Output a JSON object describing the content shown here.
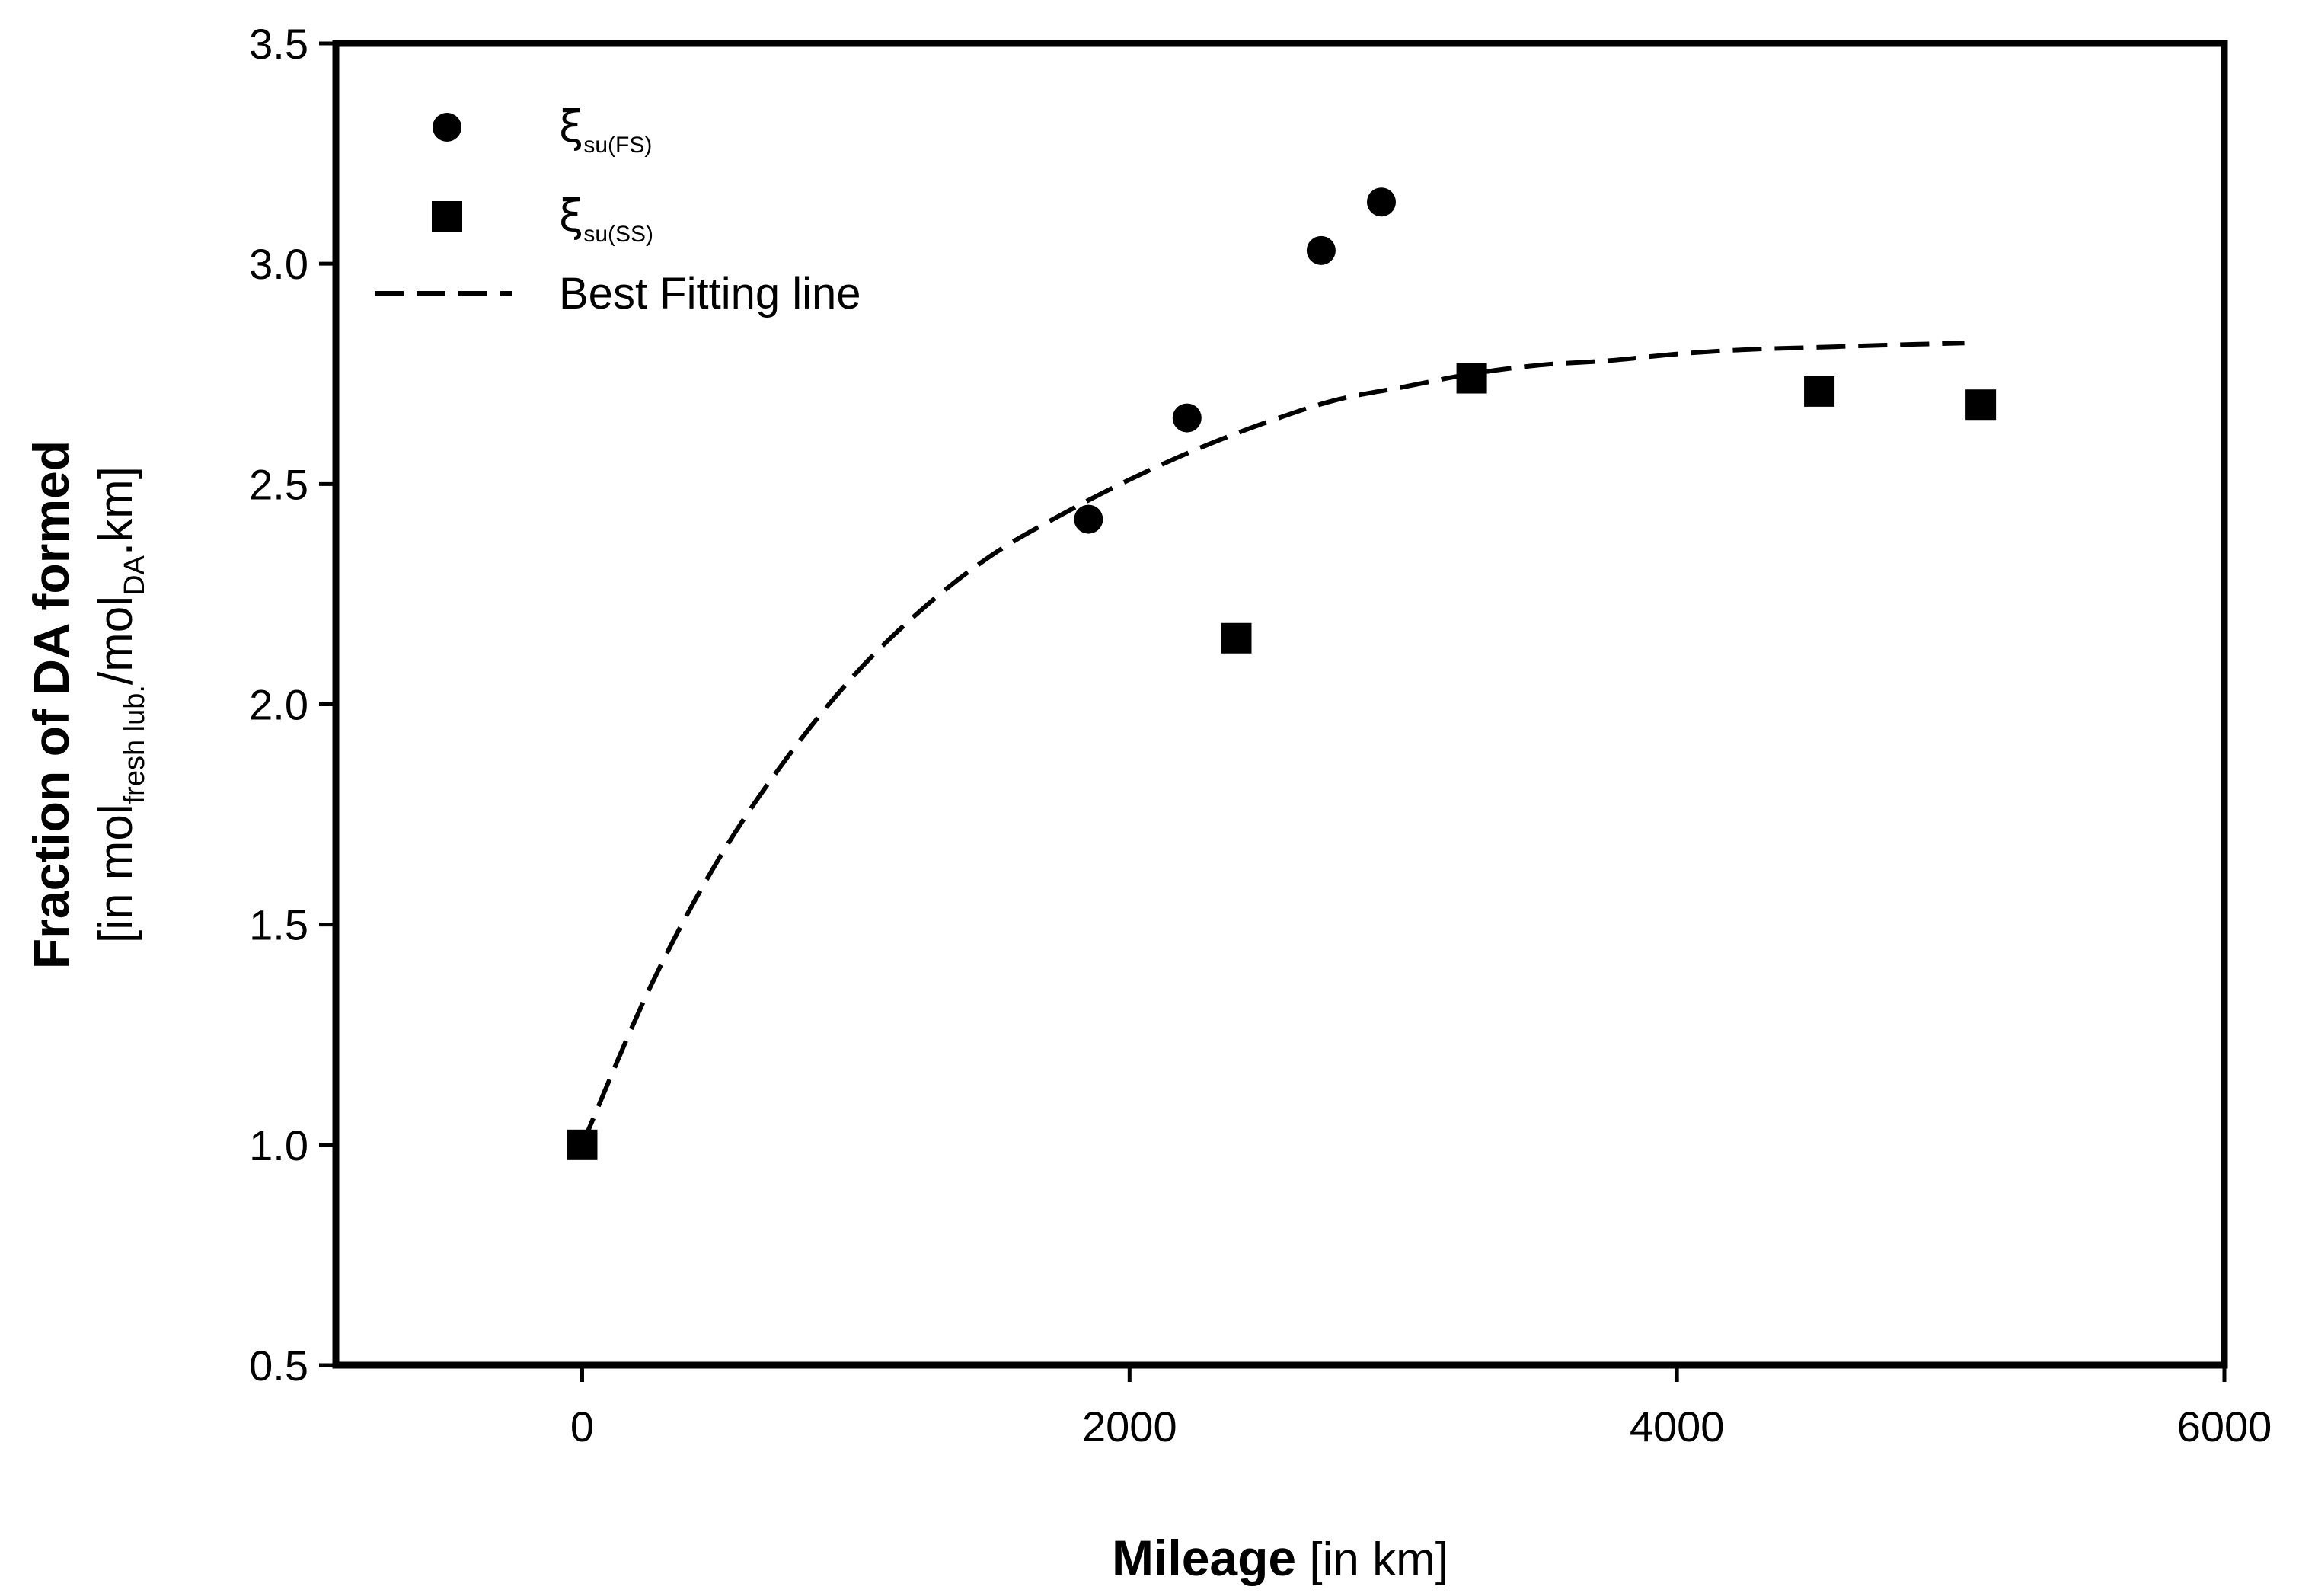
{
  "chart_data": {
    "type": "scatter",
    "title": "",
    "xlabel": {
      "bold": "Mileage",
      "regular": " [in km]"
    },
    "ylabel": {
      "bold": "Fraction of DA formed",
      "unit_prefix": "[in mol",
      "unit_sub1": "fresh lub.",
      "unit_mid": "/mol",
      "unit_sub2": "DA",
      "unit_suffix": ".km]"
    },
    "xlim": [
      -900,
      6000
    ],
    "ylim": [
      0.5,
      3.5
    ],
    "x_ticks": [
      0,
      2000,
      4000,
      6000
    ],
    "x_tick_labels": [
      "0",
      "2000",
      "4000",
      "6000"
    ],
    "y_ticks": [
      0.5,
      1.0,
      1.5,
      2.0,
      2.5,
      3.0,
      3.5
    ],
    "y_tick_labels": [
      "0.5",
      "1.0",
      "1.5",
      "2.0",
      "2.5",
      "3.0",
      "3.5"
    ],
    "grid": false,
    "legend_position": "top-left",
    "series": [
      {
        "name": "ξsu(FS)",
        "symbol": "ξ",
        "subscript": "su(FS)",
        "marker": "circle",
        "color": "#000000",
        "points": [
          {
            "x": 0,
            "y": 1.0
          },
          {
            "x": 1850,
            "y": 2.42
          },
          {
            "x": 2210,
            "y": 2.65
          },
          {
            "x": 2700,
            "y": 3.03
          },
          {
            "x": 2920,
            "y": 3.14
          }
        ]
      },
      {
        "name": "ξsu(SS)",
        "symbol": "ξ",
        "subscript": "su(SS)",
        "marker": "square",
        "color": "#000000",
        "points": [
          {
            "x": 0,
            "y": 1.0
          },
          {
            "x": 2390,
            "y": 2.15
          },
          {
            "x": 3250,
            "y": 2.74
          },
          {
            "x": 4520,
            "y": 2.71
          },
          {
            "x": 5110,
            "y": 2.68
          }
        ]
      }
    ],
    "fit_line": {
      "name": "Best Fitting line",
      "style": "dashed",
      "color": "#000000",
      "points": [
        {
          "x": 0,
          "y": 1.0
        },
        {
          "x": 250,
          "y": 1.36
        },
        {
          "x": 500,
          "y": 1.65
        },
        {
          "x": 750,
          "y": 1.88
        },
        {
          "x": 1000,
          "y": 2.07
        },
        {
          "x": 1250,
          "y": 2.22
        },
        {
          "x": 1500,
          "y": 2.34
        },
        {
          "x": 1750,
          "y": 2.43
        },
        {
          "x": 2000,
          "y": 2.51
        },
        {
          "x": 2250,
          "y": 2.58
        },
        {
          "x": 2500,
          "y": 2.64
        },
        {
          "x": 2750,
          "y": 2.69
        },
        {
          "x": 3000,
          "y": 2.72
        },
        {
          "x": 3250,
          "y": 2.75
        },
        {
          "x": 3500,
          "y": 2.77
        },
        {
          "x": 3750,
          "y": 2.78
        },
        {
          "x": 4000,
          "y": 2.795
        },
        {
          "x": 4250,
          "y": 2.805
        },
        {
          "x": 4500,
          "y": 2.81
        },
        {
          "x": 4750,
          "y": 2.815
        },
        {
          "x": 5050,
          "y": 2.82
        }
      ]
    }
  }
}
